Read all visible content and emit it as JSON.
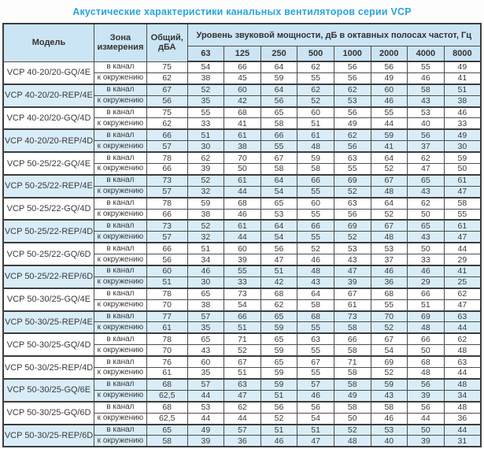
{
  "title": "Акустические характеристики канальных вентиляторов  серии VCP",
  "colors": {
    "accent_title": "#29a5dc",
    "header_bg": "#cce5f4",
    "shaded_row_bg": "#d9edf8",
    "border": "#3d3d3d",
    "text": "#3a3a3a"
  },
  "table": {
    "headers": {
      "model": "Модель",
      "zone": "Зона\nизмерения",
      "total": "Общий,\nдБА",
      "spl_group": "Уровень звуковой мощности, дБ в октавных полосах частот, Гц",
      "frequencies": [
        "63",
        "125",
        "250",
        "500",
        "1000",
        "2000",
        "4000",
        "8000"
      ]
    },
    "zone_labels": {
      "duct": "в канал",
      "ambient": "к окружению"
    },
    "rows": [
      {
        "model": "VCP 40-20/20-GQ/4E",
        "shaded": false,
        "duct": {
          "total": "75",
          "values": [
            "54",
            "66",
            "64",
            "62",
            "56",
            "56",
            "55",
            "49"
          ]
        },
        "ambient": {
          "total": "62",
          "values": [
            "38",
            "45",
            "59",
            "55",
            "56",
            "49",
            "46",
            "41"
          ]
        }
      },
      {
        "model": "VCP 40-20/20-REP/4E",
        "shaded": true,
        "duct": {
          "total": "67",
          "values": [
            "52",
            "60",
            "64",
            "62",
            "62",
            "60",
            "58",
            "51"
          ]
        },
        "ambient": {
          "total": "56",
          "values": [
            "35",
            "42",
            "56",
            "52",
            "53",
            "46",
            "43",
            "38"
          ]
        }
      },
      {
        "model": "VCP 40-20/20-GQ/4D",
        "shaded": false,
        "duct": {
          "total": "75",
          "values": [
            "55",
            "68",
            "65",
            "60",
            "56",
            "55",
            "53",
            "46"
          ]
        },
        "ambient": {
          "total": "62",
          "values": [
            "33",
            "41",
            "58",
            "51",
            "49",
            "44",
            "40",
            "33"
          ]
        }
      },
      {
        "model": "VCP 40-20/20-REP/4D",
        "shaded": true,
        "duct": {
          "total": "66",
          "values": [
            "51",
            "61",
            "66",
            "61",
            "62",
            "59",
            "56",
            "49"
          ]
        },
        "ambient": {
          "total": "57",
          "values": [
            "30",
            "38",
            "55",
            "48",
            "56",
            "41",
            "37",
            "30"
          ]
        }
      },
      {
        "model": "VCP 50-25/22-GQ/4E",
        "shaded": false,
        "duct": {
          "total": "78",
          "values": [
            "62",
            "70",
            "67",
            "59",
            "63",
            "64",
            "62",
            "59"
          ]
        },
        "ambient": {
          "total": "66",
          "values": [
            "39",
            "50",
            "58",
            "58",
            "55",
            "52",
            "47",
            "50"
          ]
        }
      },
      {
        "model": "VCP 50-25/22-REP/4E",
        "shaded": true,
        "duct": {
          "total": "73",
          "values": [
            "52",
            "61",
            "64",
            "66",
            "69",
            "67",
            "65",
            "61"
          ]
        },
        "ambient": {
          "total": "57",
          "values": [
            "32",
            "44",
            "54",
            "55",
            "52",
            "48",
            "43",
            "47"
          ]
        }
      },
      {
        "model": "VCP 50-25/22-GQ/4D",
        "shaded": false,
        "duct": {
          "total": "78",
          "values": [
            "59",
            "68",
            "65",
            "60",
            "63",
            "64",
            "62",
            "58"
          ]
        },
        "ambient": {
          "total": "66",
          "values": [
            "38",
            "46",
            "53",
            "55",
            "56",
            "52",
            "50",
            "55"
          ]
        }
      },
      {
        "model": "VCP 50-25/22-REP/4D",
        "shaded": true,
        "duct": {
          "total": "73",
          "values": [
            "52",
            "61",
            "64",
            "66",
            "69",
            "67",
            "65",
            "61"
          ]
        },
        "ambient": {
          "total": "57",
          "values": [
            "32",
            "44",
            "54",
            "55",
            "52",
            "48",
            "43",
            "47"
          ]
        }
      },
      {
        "model": "VCP 50-25/22-GQ/6D",
        "shaded": false,
        "duct": {
          "total": "66",
          "values": [
            "51",
            "60",
            "56",
            "52",
            "53",
            "53",
            "50",
            "44"
          ]
        },
        "ambient": {
          "total": "56",
          "values": [
            "34",
            "39",
            "47",
            "46",
            "43",
            "37",
            "33",
            "29"
          ]
        }
      },
      {
        "model": "VCP 50-25/22-REP/6D",
        "shaded": true,
        "duct": {
          "total": "60",
          "values": [
            "46",
            "55",
            "51",
            "48",
            "47",
            "46",
            "46",
            "41"
          ]
        },
        "ambient": {
          "total": "51",
          "values": [
            "30",
            "33",
            "42",
            "43",
            "39",
            "36",
            "29",
            "25"
          ]
        }
      },
      {
        "model": "VCP 50-30/25-GQ/4E",
        "shaded": false,
        "duct": {
          "total": "78",
          "values": [
            "65",
            "73",
            "68",
            "64",
            "67",
            "68",
            "66",
            "62"
          ]
        },
        "ambient": {
          "total": "70",
          "values": [
            "38",
            "54",
            "62",
            "58",
            "61",
            "55",
            "51",
            "47"
          ]
        }
      },
      {
        "model": "VCP 50-30/25-REP/4E",
        "shaded": true,
        "duct": {
          "total": "77",
          "values": [
            "57",
            "66",
            "65",
            "68",
            "73",
            "70",
            "69",
            "63"
          ]
        },
        "ambient": {
          "total": "61",
          "values": [
            "35",
            "51",
            "59",
            "55",
            "58",
            "52",
            "48",
            "44"
          ]
        }
      },
      {
        "model": "VCP 50-30/25-GQ/4D",
        "shaded": false,
        "duct": {
          "total": "78",
          "values": [
            "65",
            "71",
            "65",
            "63",
            "66",
            "67",
            "66",
            "62"
          ]
        },
        "ambient": {
          "total": "70",
          "values": [
            "43",
            "52",
            "59",
            "55",
            "58",
            "54",
            "50",
            "48"
          ]
        }
      },
      {
        "model": "VCP 50-30/25-REP/4D",
        "shaded": false,
        "duct": {
          "total": "76",
          "values": [
            "60",
            "67",
            "65",
            "67",
            "71",
            "69",
            "68",
            "63"
          ]
        },
        "ambient": {
          "total": "61",
          "values": [
            "35",
            "51",
            "59",
            "55",
            "58",
            "52",
            "48",
            "44"
          ]
        }
      },
      {
        "model": "VCP 50-30/25-GQ/6E",
        "shaded": true,
        "duct": {
          "total": "68",
          "values": [
            "57",
            "63",
            "59",
            "57",
            "58",
            "59",
            "56",
            "48"
          ]
        },
        "ambient": {
          "total": "62,5",
          "values": [
            "44",
            "47",
            "51",
            "46",
            "49",
            "43",
            "39",
            "34"
          ]
        }
      },
      {
        "model": "VCP 50-30/25-GQ/6D",
        "shaded": false,
        "duct": {
          "total": "68",
          "values": [
            "53",
            "62",
            "56",
            "56",
            "58",
            "58",
            "56",
            "48"
          ]
        },
        "ambient": {
          "total": "62,5",
          "values": [
            "44",
            "44",
            "52",
            "54",
            "50",
            "46",
            "44",
            "36"
          ]
        }
      },
      {
        "model": "VCP 50-30/25-REP/6D",
        "shaded": true,
        "duct": {
          "total": "65",
          "values": [
            "49",
            "57",
            "51",
            "51",
            "52",
            "53",
            "50",
            "44"
          ]
        },
        "ambient": {
          "total": "58",
          "values": [
            "39",
            "36",
            "46",
            "47",
            "48",
            "40",
            "39",
            "31"
          ]
        }
      }
    ]
  }
}
